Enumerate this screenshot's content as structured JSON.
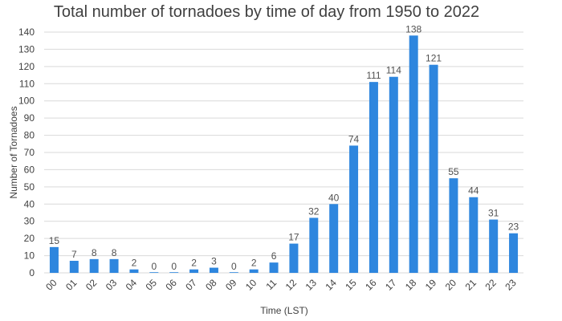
{
  "chart_data": {
    "type": "bar",
    "title": "Total number of tornadoes by time of day from 1950 to 2022",
    "xlabel": "Time (LST)",
    "ylabel": "Number of Tornadoes",
    "categories": [
      "00",
      "01",
      "02",
      "03",
      "04",
      "05",
      "06",
      "07",
      "08",
      "09",
      "10",
      "11",
      "12",
      "13",
      "14",
      "15",
      "16",
      "17",
      "18",
      "19",
      "20",
      "21",
      "22",
      "23"
    ],
    "values": [
      15,
      7,
      8,
      8,
      2,
      0,
      0,
      2,
      3,
      0,
      2,
      6,
      17,
      32,
      40,
      74,
      111,
      114,
      138,
      121,
      55,
      44,
      31,
      23
    ],
    "ylim": [
      0,
      140
    ],
    "yticks": [
      0,
      10,
      20,
      30,
      40,
      50,
      60,
      70,
      80,
      90,
      100,
      110,
      120,
      130,
      140
    ],
    "grid": true,
    "bar_color": "#2e86de"
  }
}
